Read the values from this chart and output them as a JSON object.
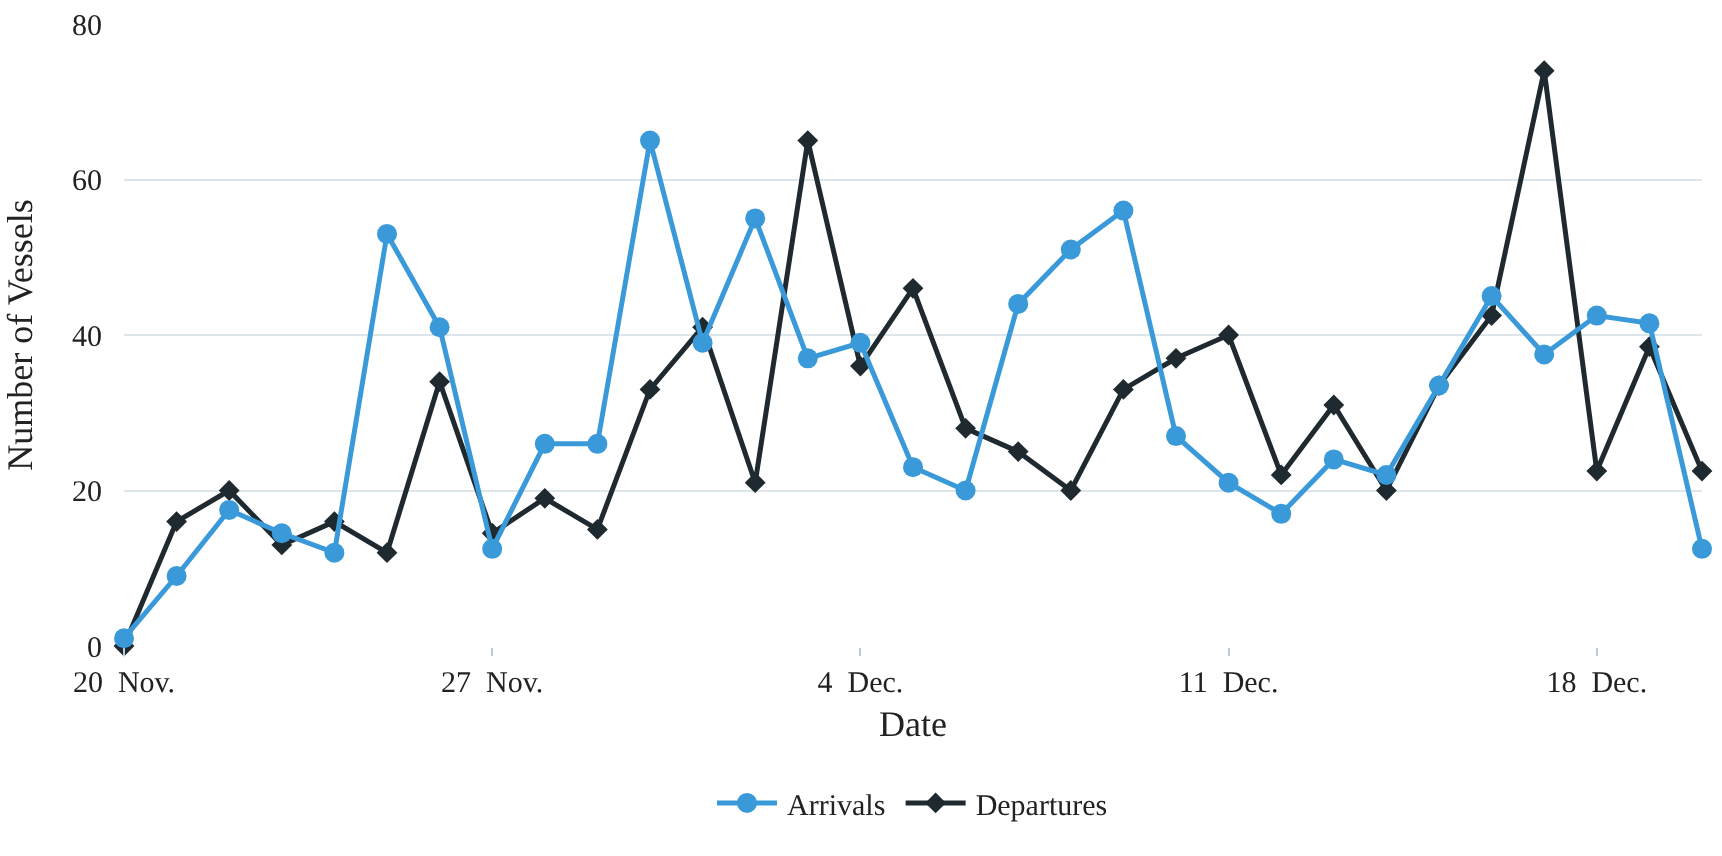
{
  "chart_data": {
    "type": "line",
    "xlabel": "Date",
    "ylabel": "Number of Vessels",
    "x": [
      "--11-20",
      "--11-21",
      "--11-22",
      "--11-23",
      "--11-24",
      "--11-25",
      "--11-26",
      "--11-27",
      "--11-28",
      "--11-29",
      "--11-30",
      "--12-01",
      "--12-02",
      "--12-03",
      "--12-04",
      "--12-05",
      "--12-06",
      "--12-07",
      "--12-08",
      "--12-09",
      "--12-10",
      "--12-11",
      "--12-12",
      "--12-13",
      "--12-14",
      "--12-15",
      "--12-16",
      "--12-17",
      "--12-18",
      "--12-19",
      "--12-20"
    ],
    "series": [
      {
        "name": "Arrivals",
        "color": "#3a9ad9",
        "marker": "circle",
        "values": [
          1,
          9,
          17.5,
          14.5,
          12,
          53,
          41,
          12.5,
          26,
          26,
          65,
          39,
          55,
          37,
          39,
          23,
          20,
          44,
          51,
          56,
          27,
          21,
          17,
          24,
          22,
          33.5,
          45,
          37.5,
          42.5,
          41.5,
          12.5
        ]
      },
      {
        "name": "Departures",
        "color": "#1f2a30",
        "marker": "diamond",
        "values": [
          0,
          16,
          20,
          13,
          16,
          12,
          34,
          14.5,
          19,
          15,
          33,
          41,
          21,
          65,
          36,
          46,
          28,
          25,
          20,
          33,
          37,
          40,
          22,
          31,
          20,
          33.5,
          42.5,
          74,
          22.5,
          38.5,
          22.5
        ]
      }
    ],
    "xlim": [
      "--11-20",
      "--12-20"
    ],
    "xticks": [
      {
        "value": "--11-20",
        "label": "20  Nov."
      },
      {
        "value": "--11-27",
        "label": "27  Nov."
      },
      {
        "value": "--12-04",
        "label": "4  Dec."
      },
      {
        "value": "--12-11",
        "label": "11  Dec."
      },
      {
        "value": "--12-18",
        "label": "18  Dec."
      }
    ],
    "ylim": [
      0,
      80
    ],
    "yticks": [
      0,
      20,
      40,
      60,
      80
    ],
    "grid": "y",
    "legend": "bottom",
    "line_style": "solid"
  }
}
